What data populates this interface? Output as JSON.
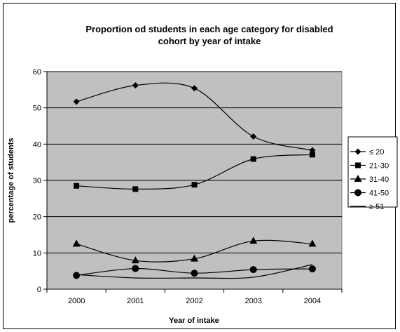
{
  "chart_data": {
    "type": "line",
    "title": "Proportion od students in each age category for disabled cohort by year of intake",
    "title_lines": [
      "Proportion od students in each age category for disabled",
      "cohort by year of intake"
    ],
    "xlabel": "Year of intake",
    "ylabel": "percentage of students",
    "categories": [
      "2000",
      "2001",
      "2002",
      "2003",
      "2004"
    ],
    "ylim": [
      0,
      60
    ],
    "yticks": [
      0,
      10,
      20,
      30,
      40,
      50,
      60
    ],
    "grid": true,
    "plot_background": "#c0c0c0",
    "legend_position": "right",
    "series": [
      {
        "name": "≤ 20",
        "marker": "diamond",
        "values": [
          51.7,
          56.2,
          55.4,
          42.1,
          38.3
        ]
      },
      {
        "name": "21-30",
        "marker": "square",
        "values": [
          28.5,
          27.6,
          28.8,
          35.9,
          37.1
        ]
      },
      {
        "name": "31-40",
        "marker": "triangle",
        "values": [
          12.5,
          7.9,
          8.4,
          13.3,
          12.5
        ]
      },
      {
        "name": "41-50",
        "marker": "circle",
        "values": [
          3.8,
          5.7,
          4.4,
          5.4,
          5.6
        ]
      },
      {
        "name": "≥ 51",
        "marker": "none",
        "values": [
          4.0,
          3.1,
          3.1,
          3.3,
          6.8
        ]
      }
    ]
  }
}
